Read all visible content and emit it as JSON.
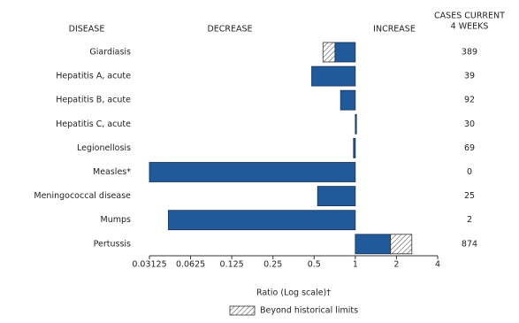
{
  "chart_data": {
    "type": "bar",
    "orientation": "horizontal",
    "headers": {
      "disease": "DISEASE",
      "decrease": "DECREASE",
      "increase": "INCREASE",
      "cases": [
        "CASES CURRENT",
        "4 WEEKS"
      ]
    },
    "categories": [
      "Giardiasis",
      "Hepatitis A, acute",
      "Hepatitis B, acute",
      "Hepatitis C, acute",
      "Legionellosis",
      "Measles*",
      "Meningococcal disease",
      "Mumps",
      "Pertussis"
    ],
    "values": [
      0.58,
      0.48,
      0.78,
      1.02,
      0.97,
      0.03125,
      0.53,
      0.043,
      2.59
    ],
    "limits": [
      0.71,
      null,
      null,
      null,
      null,
      null,
      null,
      null,
      1.81
    ],
    "cases": [
      389,
      39,
      92,
      30,
      69,
      0,
      25,
      2,
      874
    ],
    "color": "#215a9a",
    "xscale": "log",
    "xlim": [
      0.03125,
      4
    ],
    "xticks": [
      0.03125,
      0.0625,
      0.125,
      0.25,
      0.5,
      1,
      2,
      4
    ],
    "xlabel": "Ratio (Log scale)†",
    "legend": "Beyond historical limits"
  }
}
